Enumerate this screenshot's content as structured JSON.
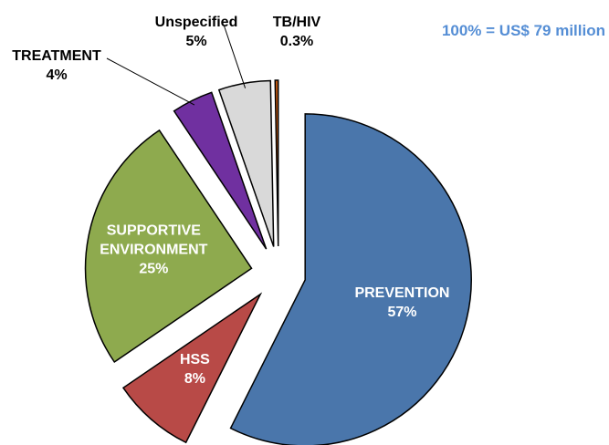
{
  "chart_data": {
    "type": "pie",
    "annotation": "100% = US$ 79 million",
    "categories": [
      "PREVENTION",
      "HSS",
      "SUPPORTIVE ENVIRONMENT",
      "TREATMENT",
      "Unspecified",
      "TB/HIV"
    ],
    "values": [
      57,
      8,
      25,
      4,
      5,
      0.3
    ],
    "value_labels": [
      "57%",
      "8%",
      "25%",
      "4%",
      "5%",
      "0.3%"
    ],
    "colors": [
      "#4a76ab",
      "#b84a47",
      "#8eaa4e",
      "#7030a0",
      "#d9d9d9",
      "#c55a11"
    ],
    "exploded": true
  }
}
